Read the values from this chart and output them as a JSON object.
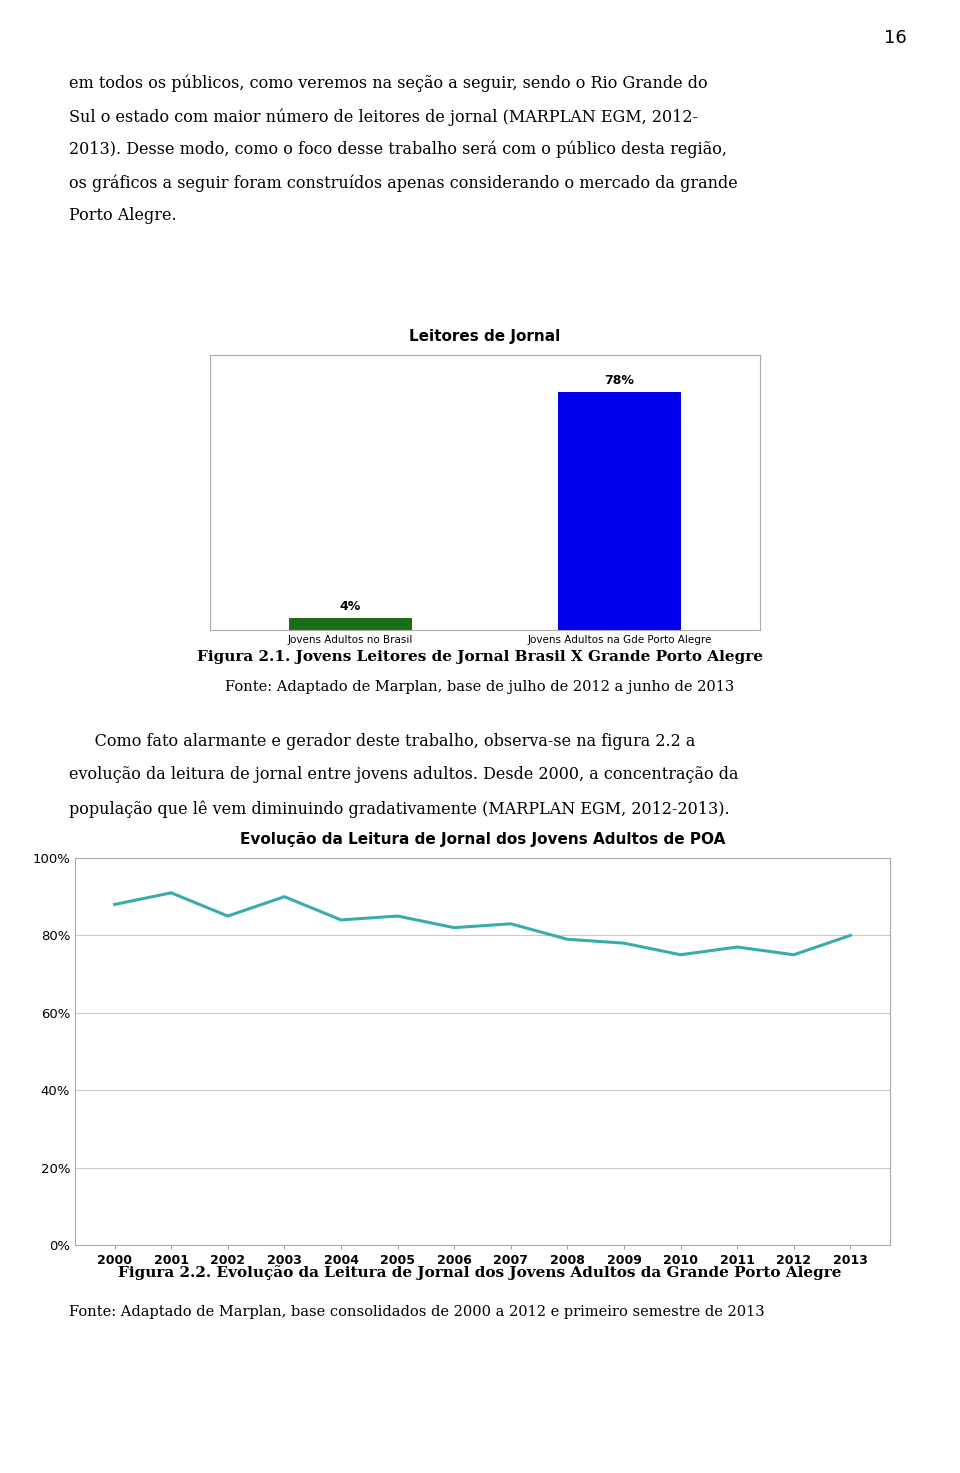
{
  "page_number": "16",
  "body1_lines": [
    "em todos os públicos, como veremos na seção a seguir, sendo o Rio Grande do",
    "Sul o estado com maior número de leitores de jornal (MARPLAN EGM, 2012-",
    "2013). Desse modo, como o foco desse trabalho será com o público desta região,",
    "os gráficos a seguir foram construídos apenas considerando o mercado da grande",
    "Porto Alegre."
  ],
  "chart1_title": "Leitores de Jornal",
  "chart1_categories": [
    "Jovens Adultos no Brasil",
    "Jovens Adultos na Gde Porto Alegre"
  ],
  "chart1_values": [
    4,
    78
  ],
  "chart1_bar_colors": [
    "#1a6e1a",
    "#0000EE"
  ],
  "chart1_value_labels": [
    "4%",
    "78%"
  ],
  "fig1_caption_bold": "Figura 2.1. Jovens Leitores de Jornal Brasil X Grande Porto Alegre",
  "fig1_source": "Fonte: Adaptado de Marplan, base de julho de 2012 a junho de 2013",
  "body2_lines": [
    "     Como fato alarmante e gerador deste trabalho, observa-se na figura 2.2 a",
    "evolução da leitura de jornal entre jovens adultos. Desde 2000, a concentração da",
    "população que lê vem diminuindo gradativamente (MARPLAN EGM, 2012-2013)."
  ],
  "chart2_title": "Evolução da Leitura de Jornal dos Jovens Adultos de POA",
  "chart2_years": [
    2000,
    2001,
    2002,
    2003,
    2004,
    2005,
    2006,
    2007,
    2008,
    2009,
    2010,
    2011,
    2012,
    2013
  ],
  "chart2_values": [
    88,
    91,
    85,
    90,
    84,
    85,
    82,
    83,
    79,
    78,
    75,
    77,
    75,
    80
  ],
  "chart2_line_color": "#3AACAC",
  "chart2_ylim": [
    0,
    100
  ],
  "chart2_yticks": [
    0,
    20,
    40,
    60,
    80,
    100
  ],
  "chart2_ytick_labels": [
    "0%",
    "20%",
    "40%",
    "60%",
    "80%",
    "100%"
  ],
  "fig2_caption_bold": "Figura 2.2. Evolução da Leitura de Jornal dos Jovens Adultos da Grande Porto Alegre",
  "fig2_source": "Fonte: Adaptado de Marplan, base consolidados de 2000 a 2012 e primeiro semestre de 2013",
  "background_color": "#ffffff",
  "text_color": "#000000"
}
